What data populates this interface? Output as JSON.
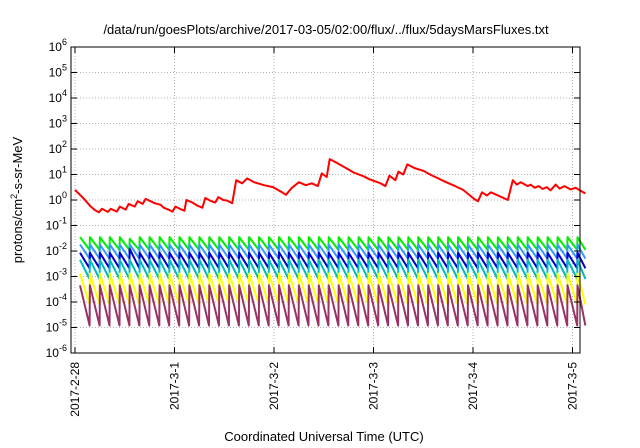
{
  "chart_data": {
    "type": "line",
    "title": "/data/run/goesPlots/archive/2017-03-05/02:00/flux/../flux/5daysMarsFluxes.txt",
    "xlabel": "Coordinated Universal Time (UTC)",
    "ylabel": {
      "pre": "protons/cm",
      "sup": "2",
      "post": "-s-sr-MeV"
    },
    "yscale": "log",
    "ylim": [
      1e-06,
      1000000.0
    ],
    "xlim": [
      0,
      5.13
    ],
    "grid": true,
    "legend": "none",
    "x_ticks": [
      {
        "x": 0,
        "label": "2017-2-28"
      },
      {
        "x": 1,
        "label": "2017-3-1"
      },
      {
        "x": 2,
        "label": "2017-3-2"
      },
      {
        "x": 3,
        "label": "2017-3-3"
      },
      {
        "x": 4,
        "label": "2017-3-4"
      },
      {
        "x": 5,
        "label": "2017-3-5"
      }
    ],
    "y_ticks": [
      {
        "value": 1e-06,
        "base": "10",
        "exp": "-6"
      },
      {
        "value": 1e-05,
        "base": "10",
        "exp": "-5"
      },
      {
        "value": 0.0001,
        "base": "10",
        "exp": "-4"
      },
      {
        "value": 0.001,
        "base": "10",
        "exp": "-3"
      },
      {
        "value": 0.01,
        "base": "10",
        "exp": "-2"
      },
      {
        "value": 0.1,
        "base": "10",
        "exp": "-1"
      },
      {
        "value": 1,
        "base": "10",
        "exp": "0"
      },
      {
        "value": 10,
        "base": "10",
        "exp": "1"
      },
      {
        "value": 100,
        "base": "10",
        "exp": "2"
      },
      {
        "value": 1000,
        "base": "10",
        "exp": "3"
      },
      {
        "value": 10000,
        "base": "10",
        "exp": "4"
      },
      {
        "value": 100000,
        "base": "10",
        "exp": "5"
      },
      {
        "value": 1000000,
        "base": "10",
        "exp": "6"
      }
    ],
    "series": [
      {
        "color": "#ff0000",
        "points": [
          [
            0.0,
            2.5
          ],
          [
            0.05,
            1.6
          ],
          [
            0.1,
            1.0
          ],
          [
            0.15,
            0.6
          ],
          [
            0.2,
            0.4
          ],
          [
            0.24,
            0.33
          ],
          [
            0.27,
            0.45
          ],
          [
            0.33,
            0.34
          ],
          [
            0.36,
            0.45
          ],
          [
            0.42,
            0.35
          ],
          [
            0.45,
            0.55
          ],
          [
            0.51,
            0.42
          ],
          [
            0.54,
            0.7
          ],
          [
            0.6,
            0.55
          ],
          [
            0.63,
            0.9
          ],
          [
            0.68,
            0.7
          ],
          [
            0.71,
            1.1
          ],
          [
            0.8,
            0.75
          ],
          [
            0.86,
            0.65
          ],
          [
            0.89,
            0.5
          ],
          [
            0.95,
            0.4
          ],
          [
            0.98,
            0.35
          ],
          [
            1.01,
            0.55
          ],
          [
            1.07,
            0.42
          ],
          [
            1.1,
            0.38
          ],
          [
            1.12,
            1.0
          ],
          [
            1.18,
            0.8
          ],
          [
            1.23,
            0.6
          ],
          [
            1.28,
            0.5
          ],
          [
            1.31,
            1.2
          ],
          [
            1.37,
            0.9
          ],
          [
            1.41,
            0.8
          ],
          [
            1.44,
            1.3
          ],
          [
            1.49,
            1.0
          ],
          [
            1.53,
            0.95
          ],
          [
            1.58,
            0.75
          ],
          [
            1.62,
            6.0
          ],
          [
            1.68,
            4.5
          ],
          [
            1.73,
            7.0
          ],
          [
            1.8,
            5.0
          ],
          [
            1.9,
            3.8
          ],
          [
            1.99,
            3.2
          ],
          [
            2.08,
            2.0
          ],
          [
            2.12,
            1.6
          ],
          [
            2.18,
            3.0
          ],
          [
            2.25,
            5.0
          ],
          [
            2.32,
            3.8
          ],
          [
            2.38,
            4.5
          ],
          [
            2.44,
            3.5
          ],
          [
            2.48,
            11.0
          ],
          [
            2.53,
            8.0
          ],
          [
            2.56,
            40.0
          ],
          [
            2.62,
            30.0
          ],
          [
            2.7,
            20.0
          ],
          [
            2.8,
            12.0
          ],
          [
            2.9,
            8.5
          ],
          [
            2.96,
            6.5
          ],
          [
            3.01,
            5.5
          ],
          [
            3.07,
            4.5
          ],
          [
            3.12,
            3.5
          ],
          [
            3.16,
            9.0
          ],
          [
            3.22,
            6.0
          ],
          [
            3.25,
            13.0
          ],
          [
            3.3,
            10.0
          ],
          [
            3.34,
            25.0
          ],
          [
            3.41,
            18.0
          ],
          [
            3.5,
            14.0
          ],
          [
            3.58,
            9.5
          ],
          [
            3.65,
            7.0
          ],
          [
            3.73,
            5.0
          ],
          [
            3.82,
            3.5
          ],
          [
            3.9,
            2.5
          ],
          [
            3.97,
            1.5
          ],
          [
            4.01,
            1.1
          ],
          [
            4.05,
            0.9
          ],
          [
            4.09,
            2.0
          ],
          [
            4.14,
            1.5
          ],
          [
            4.18,
            2.0
          ],
          [
            4.27,
            1.4
          ],
          [
            4.35,
            1.0
          ],
          [
            4.4,
            6.0
          ],
          [
            4.44,
            4.0
          ],
          [
            4.48,
            5.0
          ],
          [
            4.55,
            3.5
          ],
          [
            4.58,
            4.0
          ],
          [
            4.62,
            3.0
          ],
          [
            4.66,
            3.5
          ],
          [
            4.7,
            2.7
          ],
          [
            4.74,
            3.2
          ],
          [
            4.78,
            2.4
          ],
          [
            4.83,
            4.0
          ],
          [
            4.87,
            2.8
          ],
          [
            4.92,
            3.5
          ],
          [
            4.98,
            2.6
          ],
          [
            5.03,
            3.0
          ],
          [
            5.09,
            2.2
          ],
          [
            5.13,
            1.8
          ]
        ]
      },
      {
        "color": "#00ee00",
        "sawtooth": {
          "x0": 0.05,
          "period": 0.1,
          "top": 0.035,
          "bottom": 0.011,
          "spikes": [
            [
              0.55,
              0.03
            ]
          ]
        }
      },
      {
        "color": "#3399ff",
        "sawtooth": {
          "x0": 0.05,
          "period": 0.1,
          "top": 0.018,
          "bottom": 0.005,
          "spikes": []
        }
      },
      {
        "color": "#0000cc",
        "sawtooth": {
          "x0": 0.05,
          "period": 0.1,
          "top": 0.0085,
          "bottom": 0.0021,
          "spikes": [
            [
              0.55,
              0.012
            ],
            [
              2.05,
              0.009
            ]
          ]
        }
      },
      {
        "color": "#00bbbb",
        "sawtooth": {
          "x0": 0.05,
          "period": 0.1,
          "top": 0.0045,
          "bottom": 0.0008,
          "spikes": []
        }
      },
      {
        "color": "#ffff00",
        "sawtooth": {
          "x0": 0.05,
          "period": 0.1,
          "top": 0.0013,
          "bottom": 8e-05,
          "spikes": []
        }
      },
      {
        "color": "#993366",
        "sawtooth": {
          "x0": 0.05,
          "period": 0.1,
          "top": 0.00045,
          "bottom": 1.2e-05,
          "spikes": []
        }
      }
    ]
  }
}
